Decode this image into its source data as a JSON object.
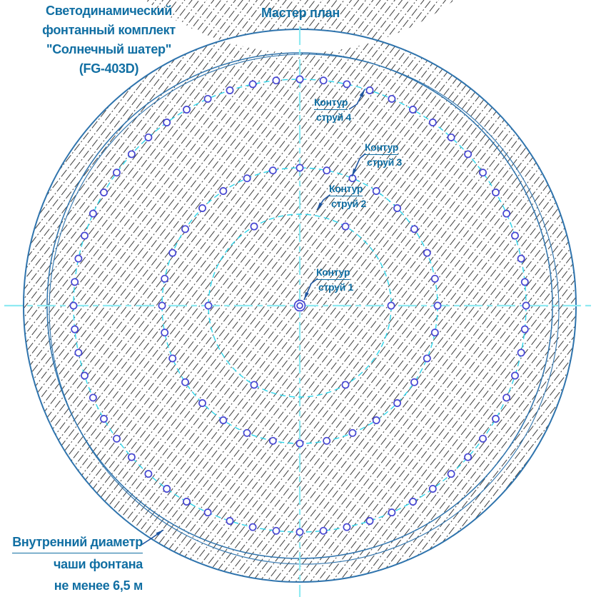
{
  "drawing": {
    "title": "Мастер план",
    "product_note": [
      "Светодинамический",
      "фонтанный комплект",
      "\"Солнечный шатер\"",
      "(FG-403D)"
    ],
    "bowl_note": [
      "Внутренний диаметр",
      "чаши фонтана",
      "не менее 6,5 м"
    ],
    "contour_labels": [
      {
        "line1": "Контур",
        "line2": "струй 1"
      },
      {
        "line1": "Контур",
        "line2": "струй 2"
      },
      {
        "line1": "Контур",
        "line2": "струй 3"
      },
      {
        "line1": "Контур",
        "line2": "струй 4"
      }
    ],
    "contours": [
      {
        "name": "Контур струй 1",
        "jet_count": 1,
        "radius": 0,
        "start_angle_deg": 0,
        "step_deg": 0
      },
      {
        "name": "Контур струй 2",
        "jet_count": 6,
        "radius": 128,
        "start_angle_deg": 0,
        "step_deg": 60
      },
      {
        "name": "Контур струй 3",
        "jet_count": 32,
        "radius": 193,
        "start_angle_deg": 0,
        "step_deg": 11.25
      },
      {
        "name": "Контур струй 4",
        "jet_count": 60,
        "radius": 317,
        "start_angle_deg": 0,
        "step_deg": 6
      }
    ],
    "colors": {
      "text": "#116fa3",
      "centerline": "#8feaf2",
      "contour_line": "#2fd7ec",
      "jet_marker": "#4646d2",
      "ring_edge": "#2f74ad",
      "hatch": "#3c3c3c",
      "leader": "#1f55a0"
    }
  }
}
